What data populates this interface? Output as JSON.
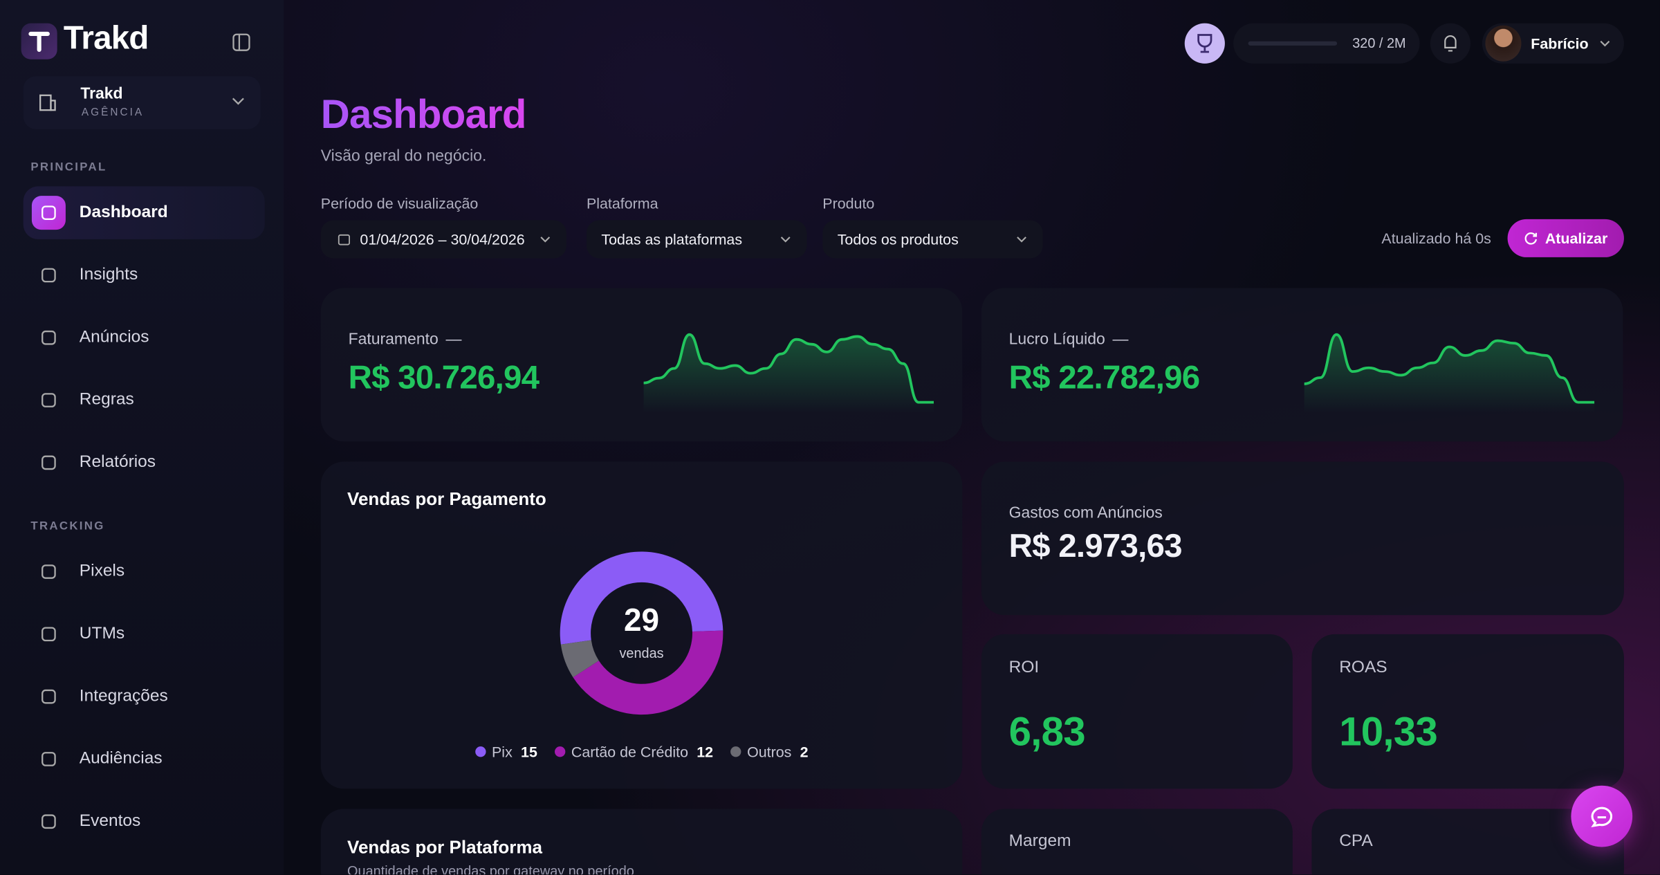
{
  "sidebar": {
    "brand": "Trakd",
    "workspace": {
      "name": "Trakd",
      "role": "AGÊNCIA"
    },
    "sections": [
      {
        "title": "PRINCIPAL",
        "items": [
          "Dashboard",
          "Insights",
          "Anúncios",
          "Regras",
          "Relatórios"
        ]
      },
      {
        "title": "TRACKING",
        "items": [
          "Pixels",
          "UTMs",
          "Integrações",
          "Audiências",
          "Eventos"
        ]
      }
    ]
  },
  "topbar": {
    "progress": "320 / 2M",
    "user": "Fabrício"
  },
  "header": {
    "title": "Dashboard",
    "subtitle": "Visão geral do negócio."
  },
  "filters": [
    {
      "label": "Período de visualização",
      "value": "01/04/2026 – 30/04/2026"
    },
    {
      "label": "Plataforma",
      "value": "Todas as plataformas"
    },
    {
      "label": "Produto",
      "value": "Todos os produtos"
    }
  ],
  "refresh": {
    "status": "Atualizado há 0s",
    "button": "Atualizar"
  },
  "kpis": [
    {
      "label": "Faturamento",
      "change": "—",
      "value": "R$ 30.726,94",
      "sparkline": [
        40,
        45,
        55,
        90,
        60,
        55,
        58,
        50,
        55,
        70,
        85,
        80,
        72,
        85,
        88,
        80,
        75,
        60,
        20,
        20
      ]
    },
    {
      "label": "Lucro Líquido",
      "change": "—",
      "value": "R$ 22.782,96",
      "sparkline": [
        35,
        40,
        75,
        45,
        48,
        45,
        42,
        48,
        52,
        65,
        58,
        62,
        70,
        68,
        60,
        58,
        40,
        20,
        20
      ]
    }
  ],
  "payment_chart": {
    "title": "Vendas por Pagamento",
    "total": 29,
    "total_label": "vendas",
    "series": [
      {
        "name": "Pix",
        "value": 15,
        "color": "#8b5cf6"
      },
      {
        "name": "Cartão de Crédito",
        "value": 12,
        "color": "#a21caf"
      },
      {
        "name": "Outros",
        "value": 2,
        "color": "#6b6b73"
      }
    ]
  },
  "stats": [
    {
      "label": "Gastos com Anúncios",
      "value": "R$ 2.973,63"
    },
    {
      "label": "ROI",
      "value": "6,83"
    },
    {
      "label": "ROAS",
      "value": "10,33"
    },
    {
      "label": "Margem"
    },
    {
      "label": "CPA"
    }
  ],
  "platform_chart": {
    "title": "Vendas por Plataforma",
    "subtitle": "Quantidade de vendas por gateway no período"
  }
}
